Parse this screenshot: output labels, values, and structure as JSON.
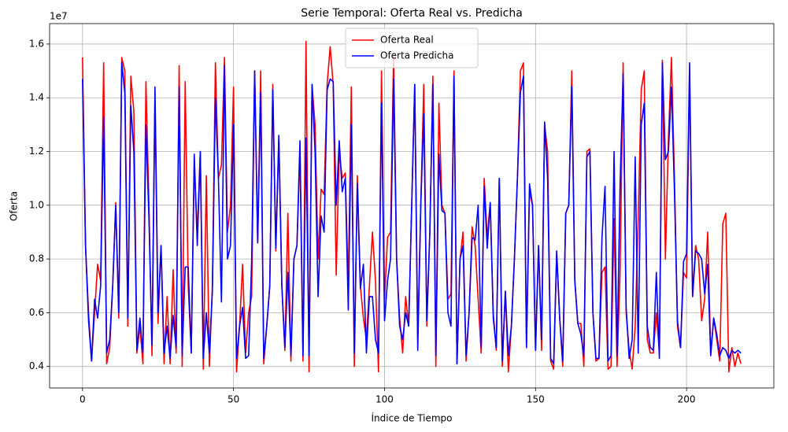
{
  "chart_data": {
    "type": "line",
    "title": "Serie Temporal: Oferta Real vs. Predicha",
    "x_label": "Índice de Tiempo",
    "y_label": "Oferta",
    "y_offset_label": "1e7",
    "xlim": [
      -10.9,
      228.9
    ],
    "xticks": [
      0,
      50,
      100,
      150,
      200
    ],
    "ylim": [
      0.32,
      1.676
    ],
    "yticks": [
      0.4,
      0.6,
      0.8,
      {
        "value": 1,
        "label": "1.0"
      },
      1.2,
      1.4,
      1.6
    ],
    "grid": true,
    "legend": "upper center",
    "x": [
      0,
      1,
      2,
      3,
      4,
      5,
      6,
      7,
      8,
      9,
      10,
      11,
      12,
      13,
      14,
      15,
      16,
      17,
      18,
      19,
      20,
      21,
      22,
      23,
      24,
      25,
      26,
      27,
      28,
      29,
      30,
      31,
      32,
      33,
      34,
      35,
      36,
      37,
      38,
      39,
      40,
      41,
      42,
      43,
      44,
      45,
      46,
      47,
      48,
      49,
      50,
      51,
      52,
      53,
      54,
      55,
      56,
      57,
      58,
      59,
      60,
      61,
      62,
      63,
      64,
      65,
      66,
      67,
      68,
      69,
      70,
      71,
      72,
      73,
      74,
      75,
      76,
      77,
      78,
      79,
      80,
      81,
      82,
      83,
      84,
      85,
      86,
      87,
      88,
      89,
      90,
      91,
      92,
      93,
      94,
      95,
      96,
      97,
      98,
      99,
      100,
      101,
      102,
      103,
      104,
      105,
      106,
      107,
      108,
      109,
      110,
      111,
      112,
      113,
      114,
      115,
      116,
      117,
      118,
      119,
      120,
      121,
      122,
      123,
      124,
      125,
      126,
      127,
      128,
      129,
      130,
      131,
      132,
      133,
      134,
      135,
      136,
      137,
      138,
      139,
      140,
      141,
      142,
      143,
      144,
      145,
      146,
      147,
      148,
      149,
      150,
      151,
      152,
      153,
      154,
      155,
      156,
      157,
      158,
      159,
      160,
      161,
      162,
      163,
      164,
      165,
      166,
      167,
      168,
      169,
      170,
      171,
      172,
      173,
      174,
      175,
      176,
      177,
      178,
      179,
      180,
      181,
      182,
      183,
      184,
      185,
      186,
      187,
      188,
      189,
      190,
      191,
      192,
      193,
      194,
      195,
      196,
      197,
      198,
      199,
      200,
      201,
      202,
      203,
      204,
      205,
      206,
      207,
      208,
      209,
      210,
      211,
      212,
      213,
      214,
      215,
      216,
      217,
      218
    ],
    "series": [
      {
        "name": "Oferta Real",
        "color": "#ff0000",
        "values": [
          1.55,
          0.85,
          0.6,
          0.42,
          0.6,
          0.78,
          0.72,
          1.53,
          0.41,
          0.47,
          0.7,
          1.01,
          0.58,
          1.55,
          1.5,
          0.55,
          1.48,
          1.35,
          0.45,
          0.55,
          0.41,
          1.46,
          1.0,
          0.44,
          1.4,
          0.56,
          0.85,
          0.41,
          0.66,
          0.41,
          0.76,
          0.45,
          1.52,
          0.4,
          1.46,
          0.7,
          0.45,
          1.15,
          0.9,
          1.2,
          0.39,
          1.11,
          0.4,
          0.7,
          1.53,
          1.1,
          1.15,
          1.55,
          0.9,
          1.0,
          1.44,
          0.38,
          0.55,
          0.78,
          0.45,
          0.6,
          0.66,
          1.5,
          0.86,
          1.5,
          0.41,
          0.55,
          0.7,
          1.45,
          0.83,
          1.25,
          0.7,
          0.46,
          0.97,
          0.42,
          0.8,
          0.85,
          1.2,
          0.42,
          1.61,
          0.38,
          1.45,
          1.3,
          0.8,
          1.06,
          1.04,
          1.45,
          1.59,
          1.45,
          0.74,
          1.2,
          1.1,
          1.12,
          0.7,
          1.44,
          0.4,
          1.11,
          0.7,
          0.58,
          0.5,
          0.7,
          0.9,
          0.72,
          0.38,
          1.5,
          0.65,
          0.88,
          0.9,
          1.56,
          0.8,
          0.58,
          0.45,
          0.66,
          0.55,
          1.0,
          1.45,
          0.5,
          1.0,
          1.45,
          0.55,
          0.9,
          1.48,
          0.4,
          1.38,
          1.0,
          0.97,
          0.65,
          0.67,
          1.5,
          0.41,
          0.8,
          0.9,
          0.42,
          0.6,
          0.92,
          0.85,
          0.65,
          0.45,
          1.1,
          0.88,
          1.01,
          0.6,
          0.46,
          1.1,
          0.4,
          0.68,
          0.38,
          0.55,
          0.8,
          1.1,
          1.5,
          1.53,
          0.48,
          1.05,
          1.0,
          0.46,
          0.85,
          0.46,
          1.3,
          1.2,
          0.42,
          0.39,
          0.82,
          0.58,
          0.4,
          0.97,
          1.0,
          1.5,
          0.72,
          0.56,
          0.56,
          0.4,
          1.2,
          1.21,
          0.6,
          0.42,
          0.43,
          0.75,
          0.77,
          0.39,
          0.4,
          0.95,
          0.4,
          0.75,
          1.53,
          0.6,
          0.46,
          0.39,
          0.55,
          0.95,
          1.43,
          1.5,
          0.5,
          0.45,
          0.45,
          0.6,
          0.45,
          1.54,
          0.8,
          1.25,
          1.55,
          1.1,
          0.55,
          0.47,
          0.75,
          0.73,
          1.5,
          0.66,
          0.85,
          0.8,
          0.57,
          0.65,
          0.9,
          0.45,
          0.58,
          0.5,
          0.42,
          0.93,
          0.97,
          0.38,
          0.47,
          0.4,
          0.45,
          0.41
        ]
      },
      {
        "name": "Oferta Predicha",
        "color": "#0000ff",
        "values": [
          1.47,
          0.85,
          0.57,
          0.42,
          0.65,
          0.58,
          0.7,
          1.33,
          0.45,
          0.5,
          0.7,
          1.0,
          0.6,
          1.53,
          1.42,
          0.58,
          1.37,
          1.2,
          0.46,
          0.58,
          0.45,
          1.3,
          0.95,
          0.48,
          1.44,
          0.6,
          0.85,
          0.45,
          0.55,
          0.43,
          0.59,
          0.47,
          1.44,
          0.44,
          0.77,
          0.77,
          0.45,
          1.19,
          0.85,
          1.2,
          0.43,
          0.6,
          0.45,
          0.68,
          1.4,
          1.1,
          0.64,
          1.52,
          0.8,
          0.85,
          1.3,
          0.43,
          0.55,
          0.62,
          0.43,
          0.44,
          0.79,
          1.5,
          0.86,
          1.42,
          0.43,
          0.55,
          0.7,
          1.43,
          0.84,
          1.26,
          0.7,
          0.47,
          0.75,
          0.44,
          0.8,
          0.85,
          1.24,
          0.44,
          1.25,
          0.44,
          1.45,
          1.2,
          0.66,
          0.96,
          0.9,
          1.43,
          1.47,
          1.46,
          1.0,
          1.24,
          1.05,
          1.1,
          0.61,
          1.3,
          0.45,
          1.08,
          0.69,
          0.78,
          0.45,
          0.66,
          0.66,
          0.5,
          0.45,
          1.38,
          0.57,
          0.72,
          0.8,
          1.47,
          0.8,
          0.55,
          0.5,
          0.6,
          0.55,
          1.0,
          1.45,
          0.46,
          1.0,
          1.34,
          0.57,
          0.9,
          1.45,
          0.44,
          1.19,
          0.98,
          0.97,
          0.6,
          0.55,
          1.48,
          0.41,
          0.8,
          0.85,
          0.44,
          0.6,
          0.88,
          0.87,
          1.0,
          0.47,
          1.07,
          0.84,
          1.01,
          0.58,
          0.47,
          1.1,
          0.42,
          0.68,
          0.44,
          0.55,
          0.8,
          1.1,
          1.42,
          1.48,
          0.47,
          1.08,
          1.0,
          0.46,
          0.85,
          0.5,
          1.31,
          1.1,
          0.43,
          0.41,
          0.83,
          0.58,
          0.42,
          0.97,
          1.0,
          1.44,
          0.72,
          0.56,
          0.52,
          0.44,
          1.18,
          1.2,
          0.6,
          0.43,
          0.43,
          0.88,
          1.07,
          0.42,
          0.44,
          1.2,
          0.44,
          1.08,
          1.49,
          0.62,
          0.43,
          0.5,
          1.18,
          0.45,
          1.3,
          1.38,
          0.55,
          0.47,
          0.46,
          0.75,
          0.43,
          1.53,
          1.17,
          1.2,
          1.44,
          1.05,
          0.57,
          0.47,
          0.79,
          0.82,
          1.53,
          0.66,
          0.83,
          0.82,
          0.8,
          0.67,
          0.78,
          0.44,
          0.58,
          0.52,
          0.44,
          0.47,
          0.46,
          0.43,
          0.46,
          0.45,
          0.46,
          0.45
        ]
      }
    ]
  }
}
